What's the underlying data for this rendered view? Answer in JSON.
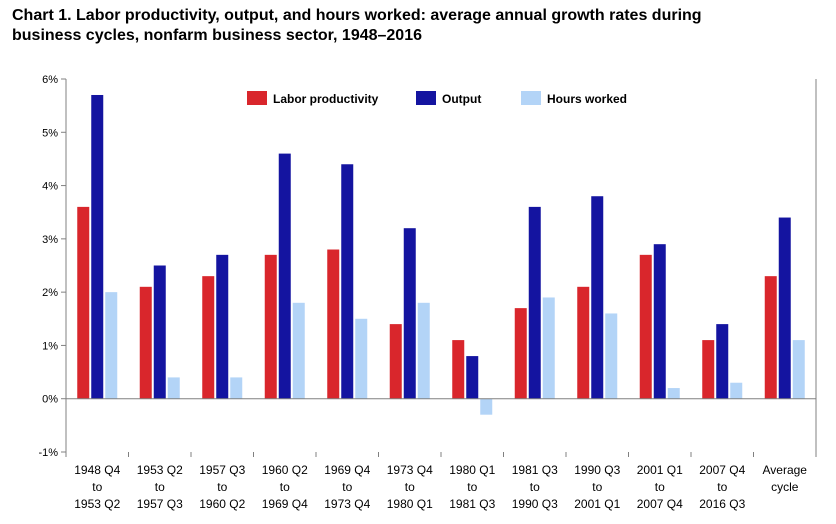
{
  "title_line1": "Chart 1. Labor productivity, output, and hours worked: average annual growth rates during",
  "title_line2": "business cycles, nonfarm business sector, 1948–2016",
  "chart_data": {
    "type": "bar",
    "title": "Chart 1. Labor productivity, output, and hours worked: average annual growth rates during business cycles, nonfarm business sector, 1948–2016",
    "xlabel": "",
    "ylabel": "",
    "ylim": [
      -1,
      6
    ],
    "yticks": [
      -1,
      0,
      1,
      2,
      3,
      4,
      5,
      6
    ],
    "ytick_labels": [
      "-1%",
      "0%",
      "1%",
      "2%",
      "3%",
      "4%",
      "5%",
      "6%"
    ],
    "grid": false,
    "legend_position": "top",
    "categories": [
      [
        "1948 Q4",
        "to",
        "1953 Q2"
      ],
      [
        "1953 Q2",
        "to",
        "1957 Q3"
      ],
      [
        "1957 Q3",
        "to",
        "1960 Q2"
      ],
      [
        "1960 Q2",
        "to",
        "1969 Q4"
      ],
      [
        "1969 Q4",
        "to",
        "1973 Q4"
      ],
      [
        "1973 Q4",
        "to",
        "1980 Q1"
      ],
      [
        "1980 Q1",
        "to",
        "1981 Q3"
      ],
      [
        "1981 Q3",
        "to",
        "1990 Q3"
      ],
      [
        "1990 Q3",
        "to",
        "2001 Q1"
      ],
      [
        "2001 Q1",
        "to",
        "2007 Q4"
      ],
      [
        "2007 Q4",
        "to",
        "2016 Q3"
      ],
      [
        "Average",
        "cycle"
      ]
    ],
    "series": [
      {
        "name": "Labor productivity",
        "color": "#d9262c",
        "values": [
          3.6,
          2.1,
          2.3,
          2.7,
          2.8,
          1.4,
          1.1,
          1.7,
          2.1,
          2.7,
          1.1,
          2.3
        ]
      },
      {
        "name": "Output",
        "color": "#1414a0",
        "values": [
          5.7,
          2.5,
          2.7,
          4.6,
          4.4,
          3.2,
          0.8,
          3.6,
          3.8,
          2.9,
          1.4,
          3.4
        ]
      },
      {
        "name": "Hours worked",
        "color": "#b3d4f7",
        "values": [
          2.0,
          0.4,
          0.4,
          1.8,
          1.5,
          1.8,
          -0.3,
          1.9,
          1.6,
          0.2,
          0.3,
          1.1
        ]
      }
    ]
  }
}
